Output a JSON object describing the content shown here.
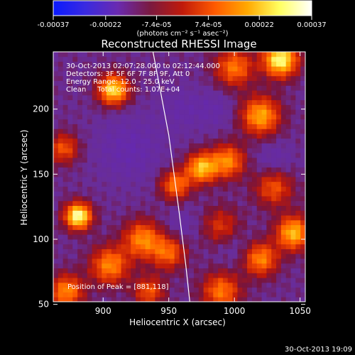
{
  "chart_data": {
    "type": "heatmap",
    "title": "Reconstructed RHESSI Image",
    "xlabel": "Heliocentric X (arcsec)",
    "ylabel": "Heliocentric Y (arcsec)",
    "xlim": [
      862,
      1054
    ],
    "ylim": [
      52,
      244
    ],
    "xticks": [
      900,
      950,
      1000,
      1050
    ],
    "yticks": [
      50,
      100,
      150,
      200
    ],
    "grid": false,
    "colorbar": {
      "location": "top",
      "min": -0.00037,
      "max": 0.00037,
      "tick_labels": [
        "-0.00037",
        "-0.00022",
        "-7.4e-05",
        "7.4e-05",
        "0.00022",
        "0.00037"
      ],
      "unit_label": "(photons cm⁻² s⁻¹ asec⁻²)",
      "colors": [
        "#0a1aff",
        "#3a2ae0",
        "#6a2ab0",
        "#7a1a40",
        "#c01a0a",
        "#ff5a00",
        "#ffa800",
        "#ffff60",
        "#ffffff"
      ]
    },
    "annotations": [
      "30-Oct-2013 02:07:28.000 to 02:12:44.000",
      "Detectors: 3F 5F 6F 7F 8F 9F, Att 0",
      "Energy Range: 12.0 - 25.0 keV",
      "Clean     Total counts: 1.07E+04"
    ],
    "peak_label": "Position of Peak = [881,118]",
    "peak": [
      881,
      118
    ],
    "limb_curve": [
      [
        938,
        244
      ],
      [
        950,
        180
      ],
      [
        958,
        120
      ],
      [
        963,
        80
      ],
      [
        966,
        52
      ]
    ],
    "grid_cells": 52,
    "sources": [
      {
        "x": 881,
        "y": 118,
        "amp": 1.0,
        "sigma": 7
      },
      {
        "x": 908,
        "y": 215,
        "amp": 0.85,
        "sigma": 8
      },
      {
        "x": 1035,
        "y": 238,
        "amp": 0.95,
        "sigma": 9
      },
      {
        "x": 1000,
        "y": 232,
        "amp": 0.55,
        "sigma": 10
      },
      {
        "x": 1020,
        "y": 195,
        "amp": 0.7,
        "sigma": 10
      },
      {
        "x": 975,
        "y": 155,
        "amp": 0.75,
        "sigma": 8
      },
      {
        "x": 995,
        "y": 160,
        "amp": 0.6,
        "sigma": 9
      },
      {
        "x": 955,
        "y": 142,
        "amp": 0.55,
        "sigma": 8
      },
      {
        "x": 1045,
        "y": 105,
        "amp": 0.75,
        "sigma": 9
      },
      {
        "x": 1020,
        "y": 85,
        "amp": 0.6,
        "sigma": 9
      },
      {
        "x": 990,
        "y": 60,
        "amp": 0.55,
        "sigma": 10
      },
      {
        "x": 930,
        "y": 100,
        "amp": 0.6,
        "sigma": 10
      },
      {
        "x": 905,
        "y": 80,
        "amp": 0.6,
        "sigma": 10
      },
      {
        "x": 950,
        "y": 90,
        "amp": 0.5,
        "sigma": 9
      },
      {
        "x": 872,
        "y": 60,
        "amp": 0.6,
        "sigma": 9
      },
      {
        "x": 935,
        "y": 60,
        "amp": 0.45,
        "sigma": 8
      },
      {
        "x": 1030,
        "y": 140,
        "amp": 0.45,
        "sigma": 10
      },
      {
        "x": 870,
        "y": 170,
        "amp": 0.45,
        "sigma": 8
      },
      {
        "x": 990,
        "y": 110,
        "amp": 0.35,
        "sigma": 10
      }
    ],
    "negatives": [
      {
        "x": 920,
        "y": 170,
        "amp": 0.7,
        "sigma": 18
      },
      {
        "x": 960,
        "y": 200,
        "amp": 0.5,
        "sigma": 12
      },
      {
        "x": 1030,
        "y": 160,
        "amp": 0.55,
        "sigma": 10
      },
      {
        "x": 985,
        "y": 200,
        "amp": 0.5,
        "sigma": 10
      },
      {
        "x": 960,
        "y": 110,
        "amp": 0.45,
        "sigma": 10
      },
      {
        "x": 1000,
        "y": 95,
        "amp": 0.4,
        "sigma": 10
      }
    ]
  },
  "footer": {
    "timestamp": "30-Oct-2013 19:09"
  }
}
